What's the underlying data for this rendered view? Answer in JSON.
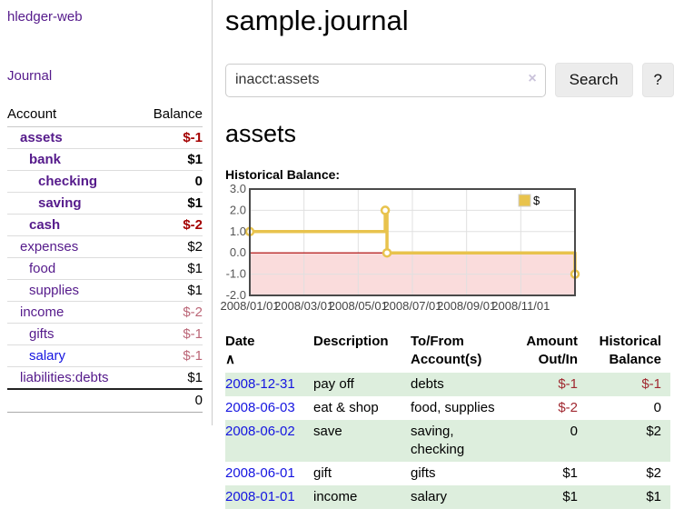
{
  "app": {
    "brand": "hledger-web",
    "nav_journal": "Journal"
  },
  "colors": {
    "link_visited": "#551a8b",
    "link_new": "#1515e0",
    "negative_strong": "#a40000",
    "negative_pale": "#bb6677",
    "negative": "#a02830",
    "row_shade_green": "#ddeedd",
    "chart_line": "#e8c34d",
    "chart_negative_fill": "#fadcdc",
    "chart_zero_line": "#aa0000"
  },
  "sidebar": {
    "headers": [
      "Account",
      "Balance"
    ],
    "rows": [
      {
        "account": "assets",
        "balance": "$-1",
        "level": 0,
        "bold": true,
        "bal": "neg-strong",
        "link": "lk-visited"
      },
      {
        "account": "bank",
        "balance": "$1",
        "level": 1,
        "bold": true,
        "bal": "pos",
        "link": "lk-visited"
      },
      {
        "account": "checking",
        "balance": "0",
        "level": 2,
        "bold": true,
        "bal": "pos",
        "link": "lk-visited"
      },
      {
        "account": "saving",
        "balance": "$1",
        "level": 2,
        "bold": true,
        "bal": "pos",
        "link": "lk-visited"
      },
      {
        "account": "cash",
        "balance": "$-2",
        "level": 1,
        "bold": true,
        "bal": "neg-strong",
        "link": "lk-visited"
      },
      {
        "account": "expenses",
        "balance": "$2",
        "level": 0,
        "bold": false,
        "bal": "pos",
        "link": "lk-visited"
      },
      {
        "account": "food",
        "balance": "$1",
        "level": 1,
        "bold": false,
        "bal": "pos",
        "link": "lk-visited"
      },
      {
        "account": "supplies",
        "balance": "$1",
        "level": 1,
        "bold": false,
        "bal": "pos",
        "link": "lk-visited"
      },
      {
        "account": "income",
        "balance": "$-2",
        "level": 0,
        "bold": false,
        "bal": "neg-pale",
        "link": "lk-visited"
      },
      {
        "account": "gifts",
        "balance": "$-1",
        "level": 1,
        "bold": false,
        "bal": "neg-pale",
        "link": "lk-visited"
      },
      {
        "account": "salary",
        "balance": "$-1",
        "level": 1,
        "bold": false,
        "bal": "neg-pale",
        "link": "lk-new"
      },
      {
        "account": "liabilities:debts",
        "balance": "$1",
        "level": 0,
        "bold": false,
        "bal": "pos",
        "link": "lk-visited"
      }
    ],
    "total": "0"
  },
  "header": {
    "title": "sample.journal"
  },
  "search": {
    "value": "inacct:assets",
    "clear_icon": "×",
    "button_label": "Search",
    "help_label": "?"
  },
  "account_page": {
    "title": "assets",
    "chart_label": "Historical Balance:"
  },
  "chart_data": {
    "type": "line",
    "title": "Historical Balance",
    "step": true,
    "series": [
      {
        "name": "$",
        "points": [
          [
            "2008-01-01",
            1
          ],
          [
            "2008-06-01",
            2
          ],
          [
            "2008-06-03",
            0
          ],
          [
            "2008-12-31",
            -1
          ]
        ]
      }
    ],
    "x_range": [
      "2008-01-01",
      "2008-12-31"
    ],
    "ylim": [
      -2,
      3
    ],
    "yticks": [
      "3.0",
      "2.0",
      "1.0",
      "0.0",
      "-1.0",
      "-2.0"
    ],
    "xticks": [
      "2008/01/01",
      "2008/03/01",
      "2008/05/01",
      "2008/07/01",
      "2008/09/01",
      "2008/11/01"
    ],
    "grid": true,
    "legend_position": "top-right",
    "legend_label": "$",
    "negative_region_shaded": true
  },
  "register": {
    "headers": [
      {
        "l1": "Date",
        "l2": "",
        "icon": "∧"
      },
      {
        "l1": "Description",
        "l2": ""
      },
      {
        "l1": "To/From",
        "l2": "Account(s)"
      },
      {
        "l1": "Amount",
        "l2": "Out/In"
      },
      {
        "l1": "Historical",
        "l2": "Balance"
      }
    ],
    "rows": [
      {
        "date": "2008-12-31",
        "description": "pay off",
        "accounts": "debts",
        "amount": "$-1",
        "balance": "$-1",
        "amount_neg": true,
        "balance_neg": true,
        "shaded": true
      },
      {
        "date": "2008-06-03",
        "description": "eat & shop",
        "accounts": "food, supplies",
        "amount": "$-2",
        "balance": "0",
        "amount_neg": true,
        "balance_neg": false,
        "shaded": false
      },
      {
        "date": "2008-06-02",
        "description": "save",
        "accounts": "saving, checking",
        "amount": "0",
        "balance": "$2",
        "amount_neg": false,
        "balance_neg": false,
        "shaded": true
      },
      {
        "date": "2008-06-01",
        "description": "gift",
        "accounts": "gifts",
        "amount": "$1",
        "balance": "$2",
        "amount_neg": false,
        "balance_neg": false,
        "shaded": false
      },
      {
        "date": "2008-01-01",
        "description": "income",
        "accounts": "salary",
        "amount": "$1",
        "balance": "$1",
        "amount_neg": false,
        "balance_neg": false,
        "shaded": true
      }
    ]
  }
}
